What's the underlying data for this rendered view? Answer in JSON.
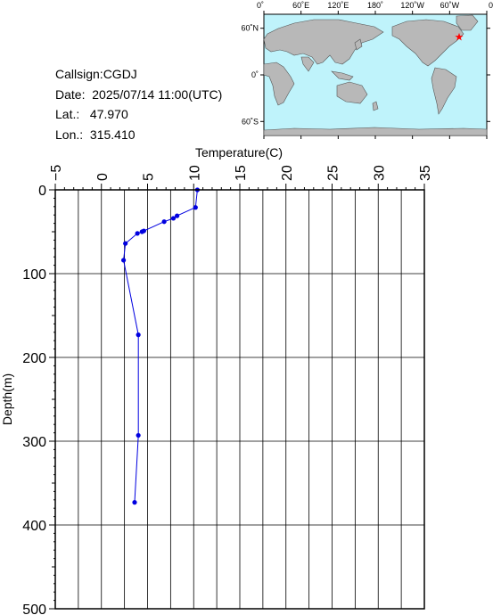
{
  "info": {
    "callsign": "Callsign:CGDJ",
    "date": "Date:  2025/07/14 11:00(UTC)",
    "lat": "Lat.:   47.970",
    "lon": "Lon.:  315.410"
  },
  "map": {
    "lon_ticks": [
      "0˚",
      "60˚E",
      "120˚E",
      "180˚",
      "120˚W",
      "60˚W",
      "0˚"
    ],
    "lat_ticks": [
      "60˚N",
      "0˚",
      "60˚S"
    ],
    "ocean_color": "#bff3fb",
    "land_color": "#b8b8b8",
    "marker_color": "#ff0000",
    "marker_lon": 315.41,
    "marker_lat": 47.97
  },
  "chart_data": {
    "type": "line",
    "xlabel": "Temperature(C)",
    "ylabel": "Depth(m)",
    "xlim": [
      -5,
      35
    ],
    "ylim": [
      0,
      500
    ],
    "x_ticks": [
      "−5",
      "0",
      "5",
      "10",
      "15",
      "20",
      "25",
      "30",
      "35"
    ],
    "y_ticks": [
      "0",
      "100",
      "200",
      "300",
      "400",
      "500"
    ],
    "grid": true,
    "series": [
      {
        "color": "#0000e0",
        "points": [
          {
            "temp": 10.4,
            "depth": 0
          },
          {
            "temp": 10.2,
            "depth": 21
          },
          {
            "temp": 8.2,
            "depth": 31
          },
          {
            "temp": 7.8,
            "depth": 34
          },
          {
            "temp": 6.8,
            "depth": 38
          },
          {
            "temp": 4.6,
            "depth": 49
          },
          {
            "temp": 4.4,
            "depth": 50
          },
          {
            "temp": 3.9,
            "depth": 52
          },
          {
            "temp": 2.6,
            "depth": 64
          },
          {
            "temp": 2.4,
            "depth": 84
          },
          {
            "temp": 4.0,
            "depth": 173
          },
          {
            "temp": 4.0,
            "depth": 293
          },
          {
            "temp": 3.6,
            "depth": 373
          }
        ]
      }
    ]
  }
}
